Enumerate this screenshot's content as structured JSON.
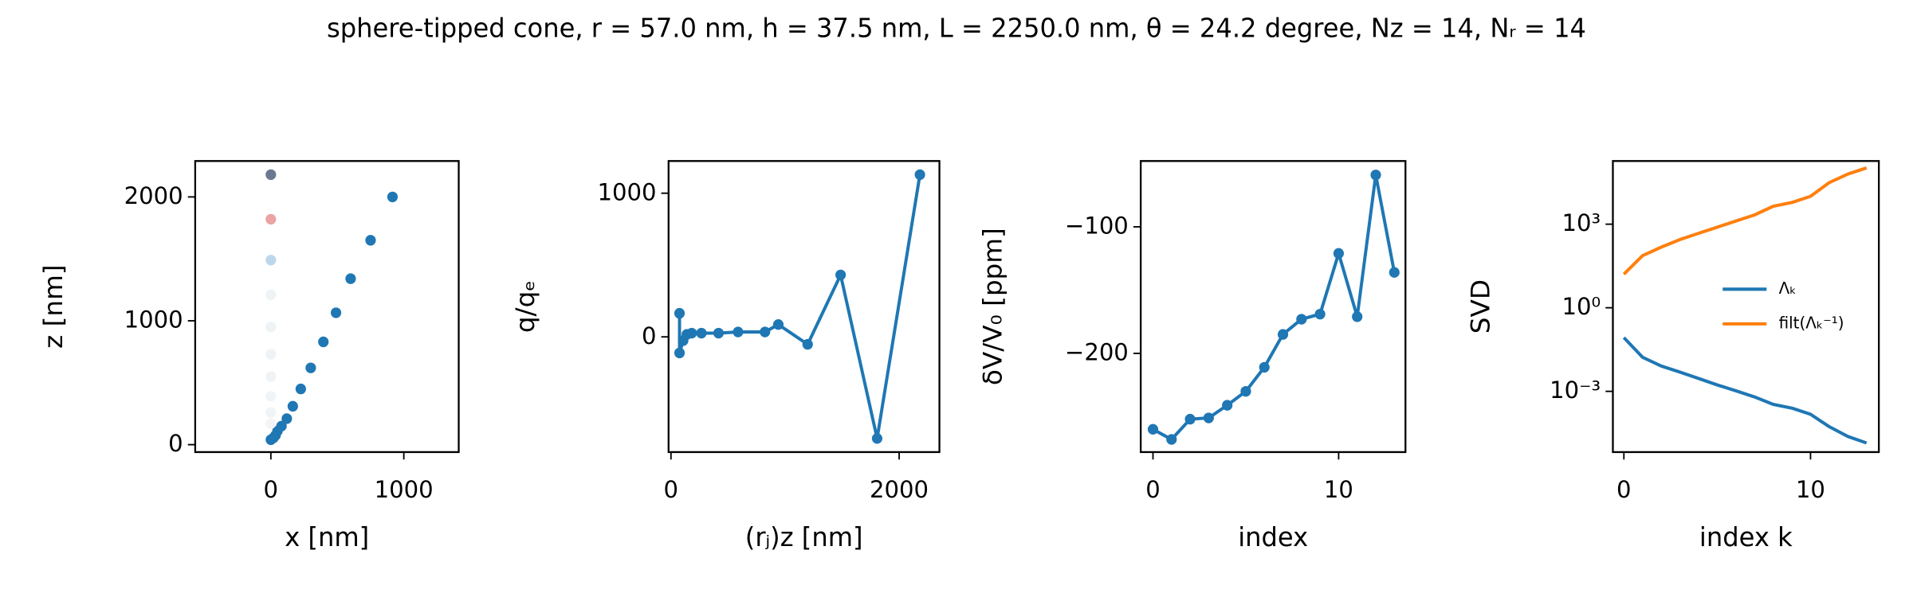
{
  "title": "sphere-tipped cone, r = 57.0 nm, h = 37.5 nm, L = 2250.0 nm, θ = 24.2 degree, Nz = 14, Nᵣ = 14",
  "chart_data": [
    {
      "type": "scatter",
      "x_label": "x [nm]",
      "y_label": "z [nm]",
      "xlim": [
        -569,
        1413
      ],
      "ylim": [
        -60,
        2290
      ],
      "xticks": [
        0,
        1000
      ],
      "yticks": [
        0,
        1000,
        2000
      ],
      "series": [
        {
          "x": [
            0,
            20,
            35,
            50,
            80,
            120,
            165,
            225,
            300,
            395,
            490,
            600,
            750,
            915
          ],
          "values": [
            40,
            55,
            75,
            110,
            150,
            210,
            310,
            450,
            620,
            830,
            1065,
            1340,
            1650,
            2000
          ],
          "color": "#1f77b4"
        },
        {
          "x": [
            0,
            0,
            0,
            0,
            0,
            0,
            0,
            0,
            0,
            0
          ],
          "values": [
            2180,
            1820,
            1490,
            1210,
            950,
            730,
            550,
            390,
            260,
            170
          ],
          "colors": [
            "#6b7890",
            "#eba3a3",
            "#bdd6ec",
            "#eef3f6",
            "#eef3f6",
            "#eff3f6",
            "#f0f3f6",
            "#f1f4f6",
            "#f1f4f6",
            "#f2f4f6"
          ]
        }
      ]
    },
    {
      "type": "line",
      "markers": true,
      "x_label": "(rⱼ)z [nm]",
      "y_label": "q/qₑ",
      "xlim": [
        -21,
        2353
      ],
      "ylim": [
        -802,
        1224
      ],
      "xticks": [
        0,
        2000
      ],
      "yticks": [
        0,
        1000
      ],
      "x": [
        75,
        75,
        107,
        139,
        182,
        267,
        417,
        588,
        824,
        941,
        1198,
        1487,
        1807,
        2182
      ],
      "series": [
        {
          "values": [
            164,
            -112,
            -26,
            17,
            26,
            26,
            26,
            34,
            34,
            86,
            -52,
            431,
            -707,
            1129
          ],
          "color": "#1f77b4"
        }
      ]
    },
    {
      "type": "line",
      "markers": true,
      "x_label": "index",
      "y_label": "δV/V₀ [ppm]",
      "xlim": [
        -0.66,
        13.6
      ],
      "ylim": [
        -278,
        -48
      ],
      "xticks": [
        0,
        10
      ],
      "yticks": [
        {
          "value": -200,
          "label": "−200"
        },
        {
          "value": -100,
          "label": "−100"
        }
      ],
      "x": [
        0,
        1,
        2,
        3,
        4,
        5,
        6,
        7,
        8,
        9,
        10,
        11,
        12,
        13
      ],
      "series": [
        {
          "values": [
            -260,
            -268,
            -252,
            -251,
            -241,
            -230,
            -211,
            -185,
            -173,
            -169,
            -121,
            -171,
            -59,
            -136
          ],
          "color": "#1f77b4"
        }
      ]
    },
    {
      "type": "line",
      "markers": false,
      "ylog": true,
      "x_label": "index k",
      "y_label": "SVD",
      "xlim": [
        -0.59,
        13.66
      ],
      "ylim": [
        6.6e-06,
        185000
      ],
      "xticks": [
        0,
        10
      ],
      "yticks": [
        {
          "value": 0.001,
          "label": "10⁻³"
        },
        {
          "value": 1,
          "label": "10⁰"
        },
        {
          "value": 1000,
          "label": "10³"
        }
      ],
      "legend": "center right",
      "x": [
        0,
        1,
        2,
        3,
        4,
        5,
        6,
        7,
        8,
        9,
        10,
        11,
        12,
        13
      ],
      "series": [
        {
          "name": "Λₖ",
          "color": "#1f77b4",
          "values": [
            0.085,
            0.0167,
            0.0081,
            0.0049,
            0.0029,
            0.0017,
            0.00105,
            0.00063,
            0.00034,
            0.00025,
            0.00015,
            5.4e-05,
            2.4e-05,
            1.4e-05
          ]
        },
        {
          "name": "filt(Λₖ⁻¹)",
          "color": "#ff7f0e",
          "values": [
            16,
            74,
            150,
            280,
            470,
            780,
            1300,
            2150,
            4400,
            6000,
            10000,
            31000,
            63000,
            105000
          ]
        }
      ]
    }
  ]
}
